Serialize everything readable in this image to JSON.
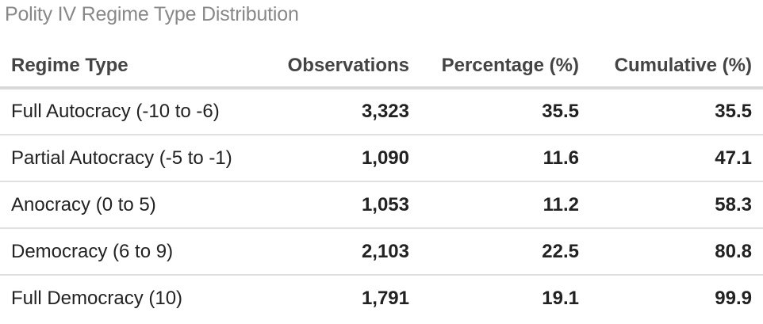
{
  "chart_data": {
    "type": "table",
    "title": "Polity IV Regime Type Distribution",
    "columns": [
      "Regime Type",
      "Observations",
      "Percentage (%)",
      "Cumulative (%)"
    ],
    "rows": [
      [
        "Full Autocracy (-10 to -6)",
        "3,323",
        "35.5",
        "35.5"
      ],
      [
        "Partial Autocracy (-5 to -1)",
        "1,090",
        "11.6",
        "47.1"
      ],
      [
        "Anocracy (0 to 5)",
        "1,053",
        "11.2",
        "58.3"
      ],
      [
        "Democracy (6 to 9)",
        "2,103",
        "22.5",
        "80.8"
      ],
      [
        "Full Democracy (10)",
        "1,791",
        "19.1",
        "99.9"
      ]
    ]
  }
}
